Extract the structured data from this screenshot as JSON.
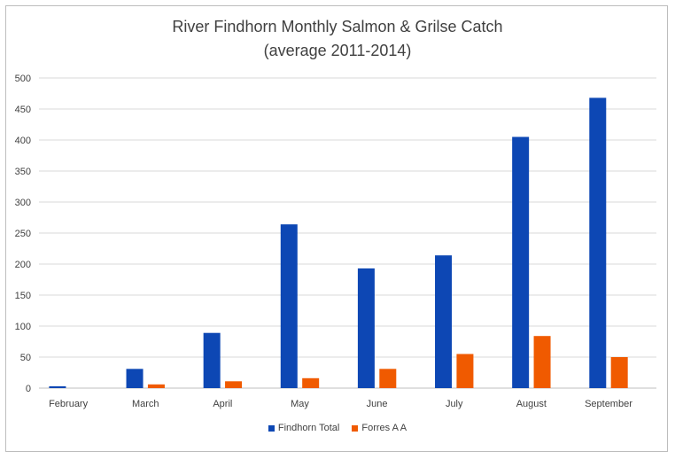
{
  "chart_data": {
    "type": "bar",
    "title": "River Findhorn Monthly Salmon & Grilse Catch",
    "subtitle": "(average 2011-2014)",
    "categories": [
      "February",
      "March",
      "April",
      "May",
      "June",
      "July",
      "August",
      "September"
    ],
    "series": [
      {
        "name": "Findhorn Total",
        "color": "#0d47b4",
        "values": [
          3,
          31,
          89,
          264,
          193,
          214,
          405,
          468
        ]
      },
      {
        "name": "Forres A A",
        "color": "#f05a00",
        "values": [
          0,
          6,
          11,
          16,
          31,
          55,
          84,
          50
        ]
      }
    ],
    "ylim": [
      0,
      500
    ],
    "yticks": [
      0,
      50,
      100,
      150,
      200,
      250,
      300,
      350,
      400,
      450,
      500
    ],
    "grid": true,
    "legend_position": "bottom"
  }
}
